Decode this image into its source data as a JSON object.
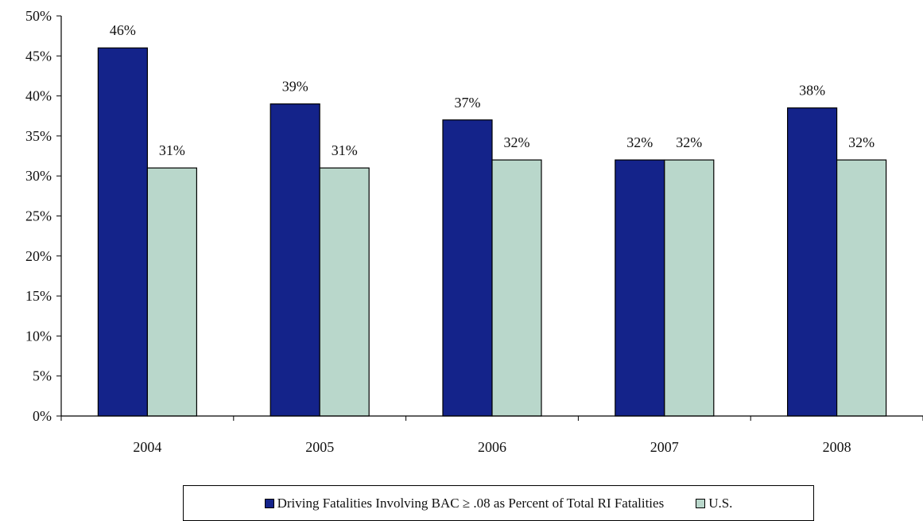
{
  "chart_data": {
    "type": "bar",
    "title": "",
    "xlabel": "",
    "ylabel": "",
    "categories": [
      "2004",
      "2005",
      "2006",
      "2007",
      "2008"
    ],
    "series": [
      {
        "name": "Driving Fatalities Involving BAC ≥ .08 as Percent of Total RI Fatalities",
        "values": [
          46,
          39,
          37,
          32,
          38.5
        ],
        "data_labels": [
          "46%",
          "39%",
          "37%",
          "32%",
          "38%"
        ],
        "color": "#14238a"
      },
      {
        "name": "U.S.",
        "values": [
          31,
          31,
          32,
          32,
          32
        ],
        "data_labels": [
          "31%",
          "31%",
          "32%",
          "32%",
          "32%"
        ],
        "color": "#b9d7cb"
      }
    ],
    "ylim": [
      0,
      50
    ],
    "y_ticks": [
      "0%",
      "5%",
      "10%",
      "15%",
      "20%",
      "25%",
      "30%",
      "35%",
      "40%",
      "45%",
      "50%"
    ],
    "grid": false,
    "legend_position": "bottom"
  }
}
